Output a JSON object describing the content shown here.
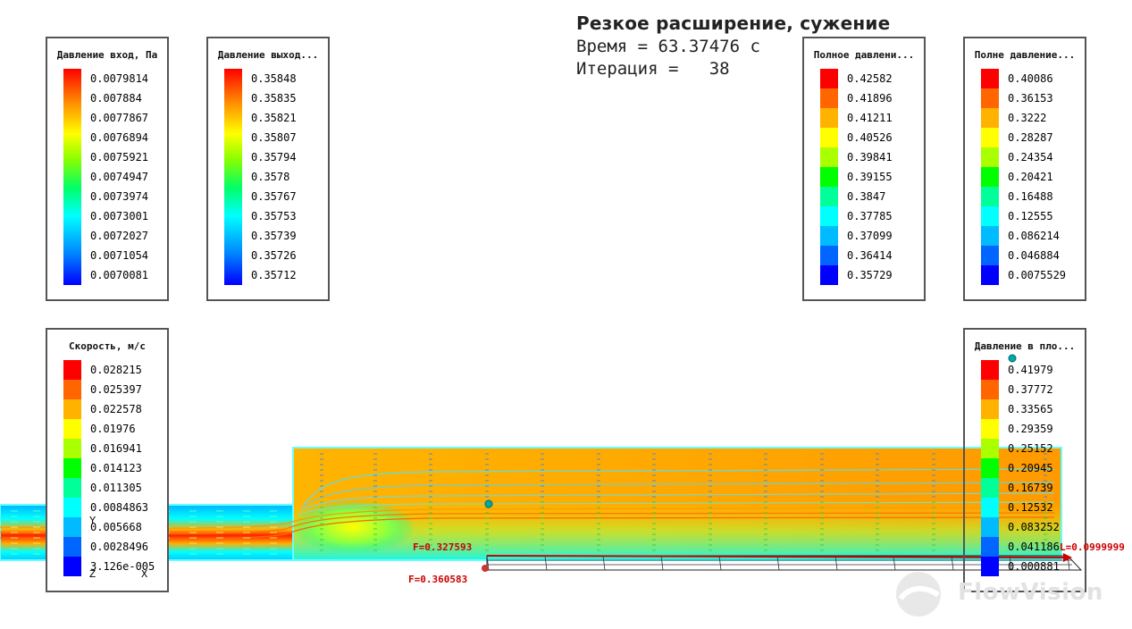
{
  "header": {
    "title": "Резкое расширение, сужение",
    "time_line": "Время = 63.37476 с",
    "iteration_line": "Итерация =   38"
  },
  "legends": [
    {
      "id": "inlet-pressure",
      "title": "Давление вход, Па",
      "labels": [
        "0.0079814",
        "0.007884",
        "0.0077867",
        "0.0076894",
        "0.0075921",
        "0.0074947",
        "0.0073974",
        "0.0073001",
        "0.0072027",
        "0.0071054",
        "0.0070081"
      ],
      "palette": "smooth"
    },
    {
      "id": "outlet-pressure",
      "title": "Давление выход...",
      "labels": [
        "0.35848",
        "0.35835",
        "0.35821",
        "0.35807",
        "0.35794",
        "0.3578",
        "0.35767",
        "0.35753",
        "0.35739",
        "0.35726",
        "0.35712"
      ],
      "palette": "smooth"
    },
    {
      "id": "total-pressure-1",
      "title": "Полное давлени...",
      "labels": [
        "0.42582",
        "0.41896",
        "0.41211",
        "0.40526",
        "0.39841",
        "0.39155",
        "0.3847",
        "0.37785",
        "0.37099",
        "0.36414",
        "0.35729"
      ],
      "palette": "steps"
    },
    {
      "id": "total-pressure-2",
      "title": "Полне давление...",
      "labels": [
        "0.40086",
        "0.36153",
        "0.3222",
        "0.28287",
        "0.24354",
        "0.20421",
        "0.16488",
        "0.12555",
        "0.086214",
        "0.046884",
        "0.0075529"
      ],
      "palette": "steps"
    },
    {
      "id": "velocity",
      "title": "Скорость, м/с",
      "labels": [
        "0.028215",
        "0.025397",
        "0.022578",
        "0.01976",
        "0.016941",
        "0.014123",
        "0.011305",
        "0.0084863",
        "0.005668",
        "0.0028496",
        "3.126e-005"
      ],
      "palette": "steps"
    },
    {
      "id": "plane-pressure",
      "title": "Давление в пло...",
      "labels": [
        "0.41979",
        "0.37772",
        "0.33565",
        "0.29359",
        "0.25152",
        "0.20945",
        "0.16739",
        "0.12532",
        "0.083252",
        "0.041186",
        "0.000881"
      ],
      "palette": "steps"
    }
  ],
  "palette_steps": [
    "#ff0000",
    "#ff6600",
    "#ffb300",
    "#ffff00",
    "#aaff00",
    "#00ff00",
    "#00ff99",
    "#00ffff",
    "#00bbff",
    "#0066ff",
    "#0000ff"
  ],
  "axes": {
    "x": "X",
    "y": "Y",
    "z": "Z"
  },
  "forces": {
    "f1": "F=0.327593",
    "f2": "F=0.360583",
    "f3": "L=0.0999999"
  },
  "brand": {
    "name": "FlowVision"
  }
}
